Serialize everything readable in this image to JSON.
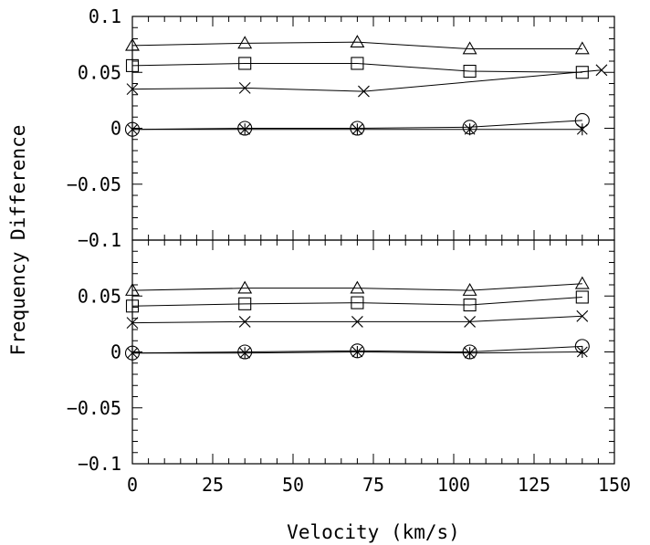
{
  "chart_data": [
    {
      "type": "line",
      "panel": "top",
      "xlabel": "Velocity (km/s)",
      "ylabel": "Frequency Difference",
      "xlim": [
        0,
        150
      ],
      "ylim": [
        -0.1,
        0.1
      ],
      "yticks": [
        "0.1",
        "0.05",
        "0",
        "−0.05",
        "−0.1"
      ],
      "series": [
        {
          "marker": "triangle",
          "x": [
            0,
            35,
            70,
            105,
            140
          ],
          "y": [
            0.074,
            0.076,
            0.077,
            0.071,
            0.071
          ]
        },
        {
          "marker": "square",
          "x": [
            0,
            35,
            70,
            105,
            140
          ],
          "y": [
            0.056,
            0.058,
            0.058,
            0.051,
            0.05
          ]
        },
        {
          "marker": "cross",
          "x": [
            0,
            35,
            72,
            146
          ],
          "y": [
            0.035,
            0.036,
            0.033,
            0.052
          ]
        },
        {
          "marker": "circle",
          "x": [
            0,
            35,
            70,
            105,
            140
          ],
          "y": [
            -0.001,
            0.0,
            0.0,
            0.001,
            0.007
          ]
        },
        {
          "marker": "asterisk",
          "x": [
            0,
            35,
            70,
            105,
            140
          ],
          "y": [
            -0.001,
            -0.001,
            -0.001,
            -0.001,
            -0.001
          ]
        }
      ]
    },
    {
      "type": "line",
      "panel": "bottom",
      "xlabel": "Velocity (km/s)",
      "ylabel": "Frequency Difference",
      "xlim": [
        0,
        150
      ],
      "ylim": [
        -0.1,
        0.1
      ],
      "xticks": [
        "0",
        "25",
        "50",
        "75",
        "100",
        "125",
        "150"
      ],
      "yticks": [
        "0.05",
        "0",
        "−0.05",
        "−0.1"
      ],
      "series": [
        {
          "marker": "triangle",
          "x": [
            0,
            35,
            70,
            105,
            140
          ],
          "y": [
            0.055,
            0.057,
            0.057,
            0.055,
            0.061
          ]
        },
        {
          "marker": "square",
          "x": [
            0,
            35,
            70,
            105,
            140
          ],
          "y": [
            0.041,
            0.043,
            0.044,
            0.042,
            0.049
          ]
        },
        {
          "marker": "cross",
          "x": [
            0,
            35,
            70,
            105,
            140
          ],
          "y": [
            0.026,
            0.027,
            0.027,
            0.027,
            0.032
          ]
        },
        {
          "marker": "circle",
          "x": [
            0,
            35,
            70,
            105,
            140
          ],
          "y": [
            -0.001,
            0.0,
            0.001,
            0.0,
            0.005
          ]
        },
        {
          "marker": "asterisk",
          "x": [
            0,
            35,
            70,
            105,
            140
          ],
          "y": [
            -0.001,
            -0.001,
            0.0,
            -0.001,
            0.0
          ]
        }
      ]
    }
  ]
}
